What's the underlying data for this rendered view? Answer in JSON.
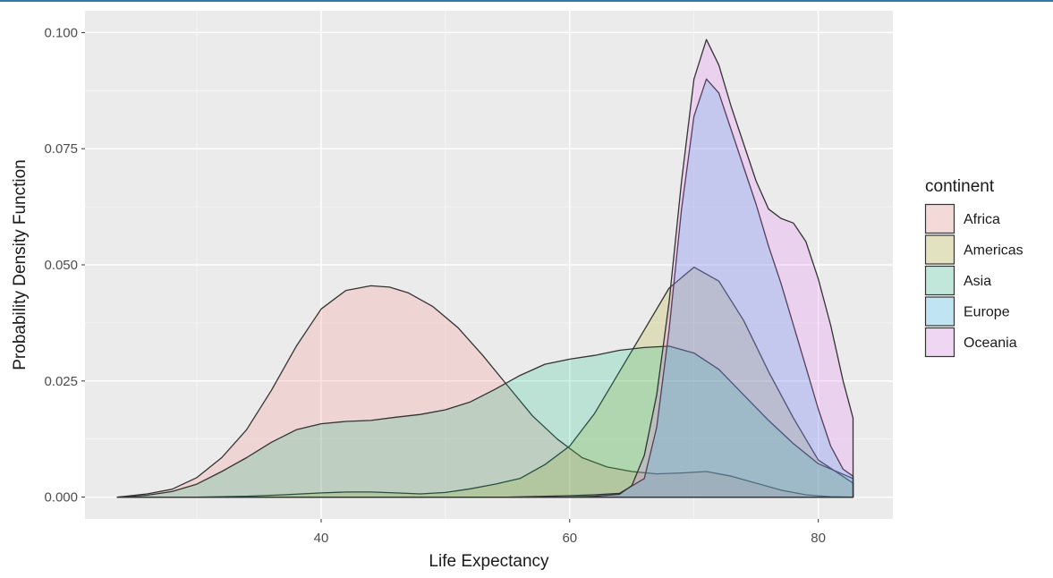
{
  "chart_data": {
    "type": "area",
    "subtype": "density",
    "xlabel": "Life Expectancy",
    "ylabel": "Probability Density Function",
    "xlim": [
      21,
      86
    ],
    "ylim": [
      -0.0047,
      0.1047
    ],
    "x_ticks": [
      40,
      60,
      80
    ],
    "x_tick_labels": [
      "40",
      "60",
      "80"
    ],
    "y_ticks": [
      0.0,
      0.025,
      0.05,
      0.075,
      0.1
    ],
    "y_tick_labels": [
      "0.000",
      "0.025",
      "0.050",
      "0.075",
      "0.100"
    ],
    "grid": true,
    "legend": {
      "title": "continent",
      "position": "right"
    },
    "series": [
      {
        "name": "Africa",
        "fill": "#f8766d",
        "x": [
          23.6,
          26,
          28,
          30,
          32,
          34,
          36,
          38,
          40,
          42,
          44,
          45.5,
          47,
          49,
          51,
          53,
          55,
          57,
          59,
          61,
          63,
          65,
          67,
          69,
          71,
          73,
          75,
          77,
          79,
          81,
          82.8
        ],
        "y": [
          0.0,
          0.0007,
          0.0017,
          0.0042,
          0.0085,
          0.0145,
          0.023,
          0.0325,
          0.0405,
          0.0445,
          0.0455,
          0.0452,
          0.044,
          0.041,
          0.0365,
          0.0305,
          0.024,
          0.0175,
          0.0125,
          0.0085,
          0.0065,
          0.0055,
          0.005,
          0.0052,
          0.0055,
          0.0045,
          0.003,
          0.0015,
          0.0005,
          0.0001,
          0.0
        ]
      },
      {
        "name": "Americas",
        "fill": "#a3a500",
        "x": [
          23.6,
          30,
          34,
          37,
          40,
          42,
          44,
          46,
          48,
          50,
          52,
          54,
          56,
          58,
          60,
          62,
          64,
          66,
          68,
          70,
          72,
          74,
          76,
          78,
          80,
          82.8
        ],
        "y": [
          0.0,
          0.0,
          0.0002,
          0.0005,
          0.0009,
          0.0011,
          0.0011,
          0.0009,
          0.0007,
          0.001,
          0.0018,
          0.0028,
          0.004,
          0.007,
          0.011,
          0.018,
          0.027,
          0.036,
          0.045,
          0.0495,
          0.0465,
          0.038,
          0.027,
          0.017,
          0.008,
          0.003
        ]
      },
      {
        "name": "Asia",
        "fill": "#00bf7d",
        "x": [
          23.6,
          26,
          28,
          30,
          32,
          34,
          36,
          38,
          40,
          42,
          44,
          46,
          48,
          50,
          52,
          54,
          56,
          58,
          60,
          62,
          64,
          66,
          68,
          70,
          72,
          74,
          76,
          78,
          80,
          82.8
        ],
        "y": [
          0.0,
          0.0004,
          0.0012,
          0.0028,
          0.0055,
          0.0085,
          0.0118,
          0.0145,
          0.0158,
          0.0163,
          0.0165,
          0.0172,
          0.0178,
          0.0188,
          0.0205,
          0.0232,
          0.0262,
          0.0286,
          0.0297,
          0.0305,
          0.0316,
          0.0322,
          0.0325,
          0.031,
          0.0275,
          0.022,
          0.0165,
          0.0115,
          0.0072,
          0.004
        ]
      },
      {
        "name": "Europe",
        "fill": "#00b0f6",
        "x": [
          23.6,
          55,
          60,
          62,
          64,
          66,
          67,
          68,
          69,
          70,
          71,
          72,
          73,
          74,
          75,
          76,
          77,
          78,
          79,
          80,
          81,
          82,
          82.8
        ],
        "y": [
          0.0,
          0.0,
          0.0003,
          0.0005,
          0.0008,
          0.004,
          0.015,
          0.036,
          0.062,
          0.082,
          0.09,
          0.087,
          0.079,
          0.071,
          0.063,
          0.054,
          0.046,
          0.037,
          0.028,
          0.019,
          0.011,
          0.006,
          0.0045
        ]
      },
      {
        "name": "Oceania",
        "fill": "#e76bf3",
        "x": [
          23.6,
          60,
          62,
          64,
          65,
          66,
          67,
          68,
          69,
          70,
          71,
          72,
          73,
          74,
          75,
          76,
          77,
          78,
          79,
          80,
          81,
          82,
          82.8
        ],
        "y": [
          0.0,
          0.0,
          0.0002,
          0.0006,
          0.0025,
          0.009,
          0.022,
          0.042,
          0.068,
          0.09,
          0.0985,
          0.093,
          0.084,
          0.076,
          0.068,
          0.062,
          0.06,
          0.059,
          0.055,
          0.047,
          0.037,
          0.025,
          0.017
        ]
      }
    ]
  }
}
